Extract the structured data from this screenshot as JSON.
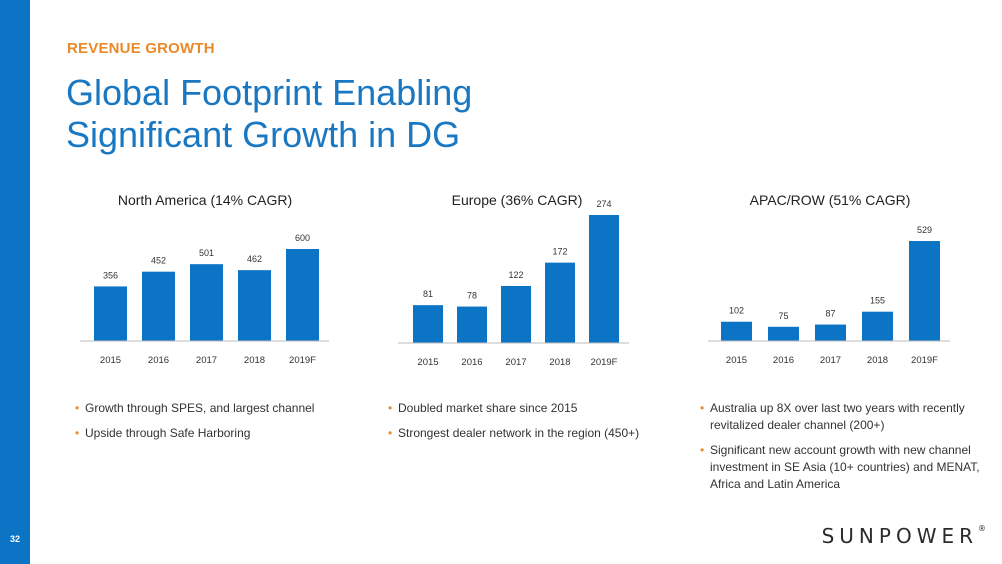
{
  "page": {
    "kicker": "REVENUE GROWTH",
    "title_line1": "Global Footprint Enabling",
    "title_line2": "Significant Growth in DG",
    "page_number": "32",
    "logo_text": "SUNPOWER",
    "logo_mark": "®"
  },
  "colors": {
    "bar": "#0b74c4",
    "accent": "#e98a2a",
    "title": "#1a78c2"
  },
  "chart_data": [
    {
      "type": "bar",
      "title": "North America (14% CAGR)",
      "categories": [
        "2015",
        "2016",
        "2017",
        "2018",
        "2019F"
      ],
      "values": [
        356,
        452,
        501,
        462,
        600
      ],
      "xlabel": "",
      "ylabel": "",
      "ylim": [
        0,
        600
      ]
    },
    {
      "type": "bar",
      "title": "Europe (36% CAGR)",
      "categories": [
        "2015",
        "2016",
        "2017",
        "2018",
        "2019F"
      ],
      "values": [
        81,
        78,
        122,
        172,
        274
      ],
      "xlabel": "",
      "ylabel": "",
      "ylim": [
        0,
        274
      ]
    },
    {
      "type": "bar",
      "title": "APAC/ROW (51% CAGR)",
      "categories": [
        "2015",
        "2016",
        "2017",
        "2018",
        "2019F"
      ],
      "values": [
        102,
        75,
        87,
        155,
        529
      ],
      "xlabel": "",
      "ylabel": "",
      "ylim": [
        0,
        529
      ]
    }
  ],
  "bullets": [
    [
      "Growth through SPES, and largest channel",
      "Upside through Safe Harboring"
    ],
    [
      "Doubled market share since 2015",
      "Strongest dealer network in the region (450+)"
    ],
    [
      "Australia up 8X over last two years with recently revitalized dealer channel (200+)",
      "Significant new account growth with new channel investment in SE Asia (10+ countries) and MENAT, Africa and Latin America"
    ]
  ]
}
